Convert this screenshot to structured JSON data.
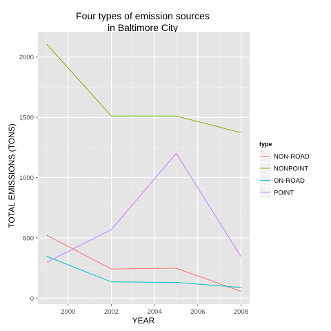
{
  "chart_data": {
    "type": "line",
    "title_line1": "Four types of emission sources",
    "title_line2": "in Baltimore City",
    "xlabel": "YEAR",
    "ylabel": "TOTAL EMISSIONS (TONS)",
    "x": [
      1999,
      2002,
      2005,
      2008
    ],
    "xlim": [
      1998.6,
      2008.4
    ],
    "ylim": [
      -50,
      2210
    ],
    "x_ticks": [
      2000,
      2002,
      2004,
      2006,
      2008
    ],
    "y_ticks": [
      0,
      500,
      1000,
      1500,
      2000
    ],
    "grid": true,
    "background": "#e5e5e5",
    "legend": {
      "title": "type",
      "placement": "right"
    },
    "series": [
      {
        "name": "NON-ROAD",
        "color": "#f8766d",
        "values": [
          522,
          241,
          248,
          55
        ]
      },
      {
        "name": "NONPOINT",
        "color": "#7cae00",
        "values": [
          2108,
          1510,
          1510,
          1373
        ]
      },
      {
        "name": "ON-ROAD",
        "color": "#00bfc4",
        "values": [
          347,
          134,
          130,
          88
        ]
      },
      {
        "name": "POINT",
        "color": "#c77cff",
        "values": [
          297,
          568,
          1200,
          345
        ]
      }
    ]
  }
}
